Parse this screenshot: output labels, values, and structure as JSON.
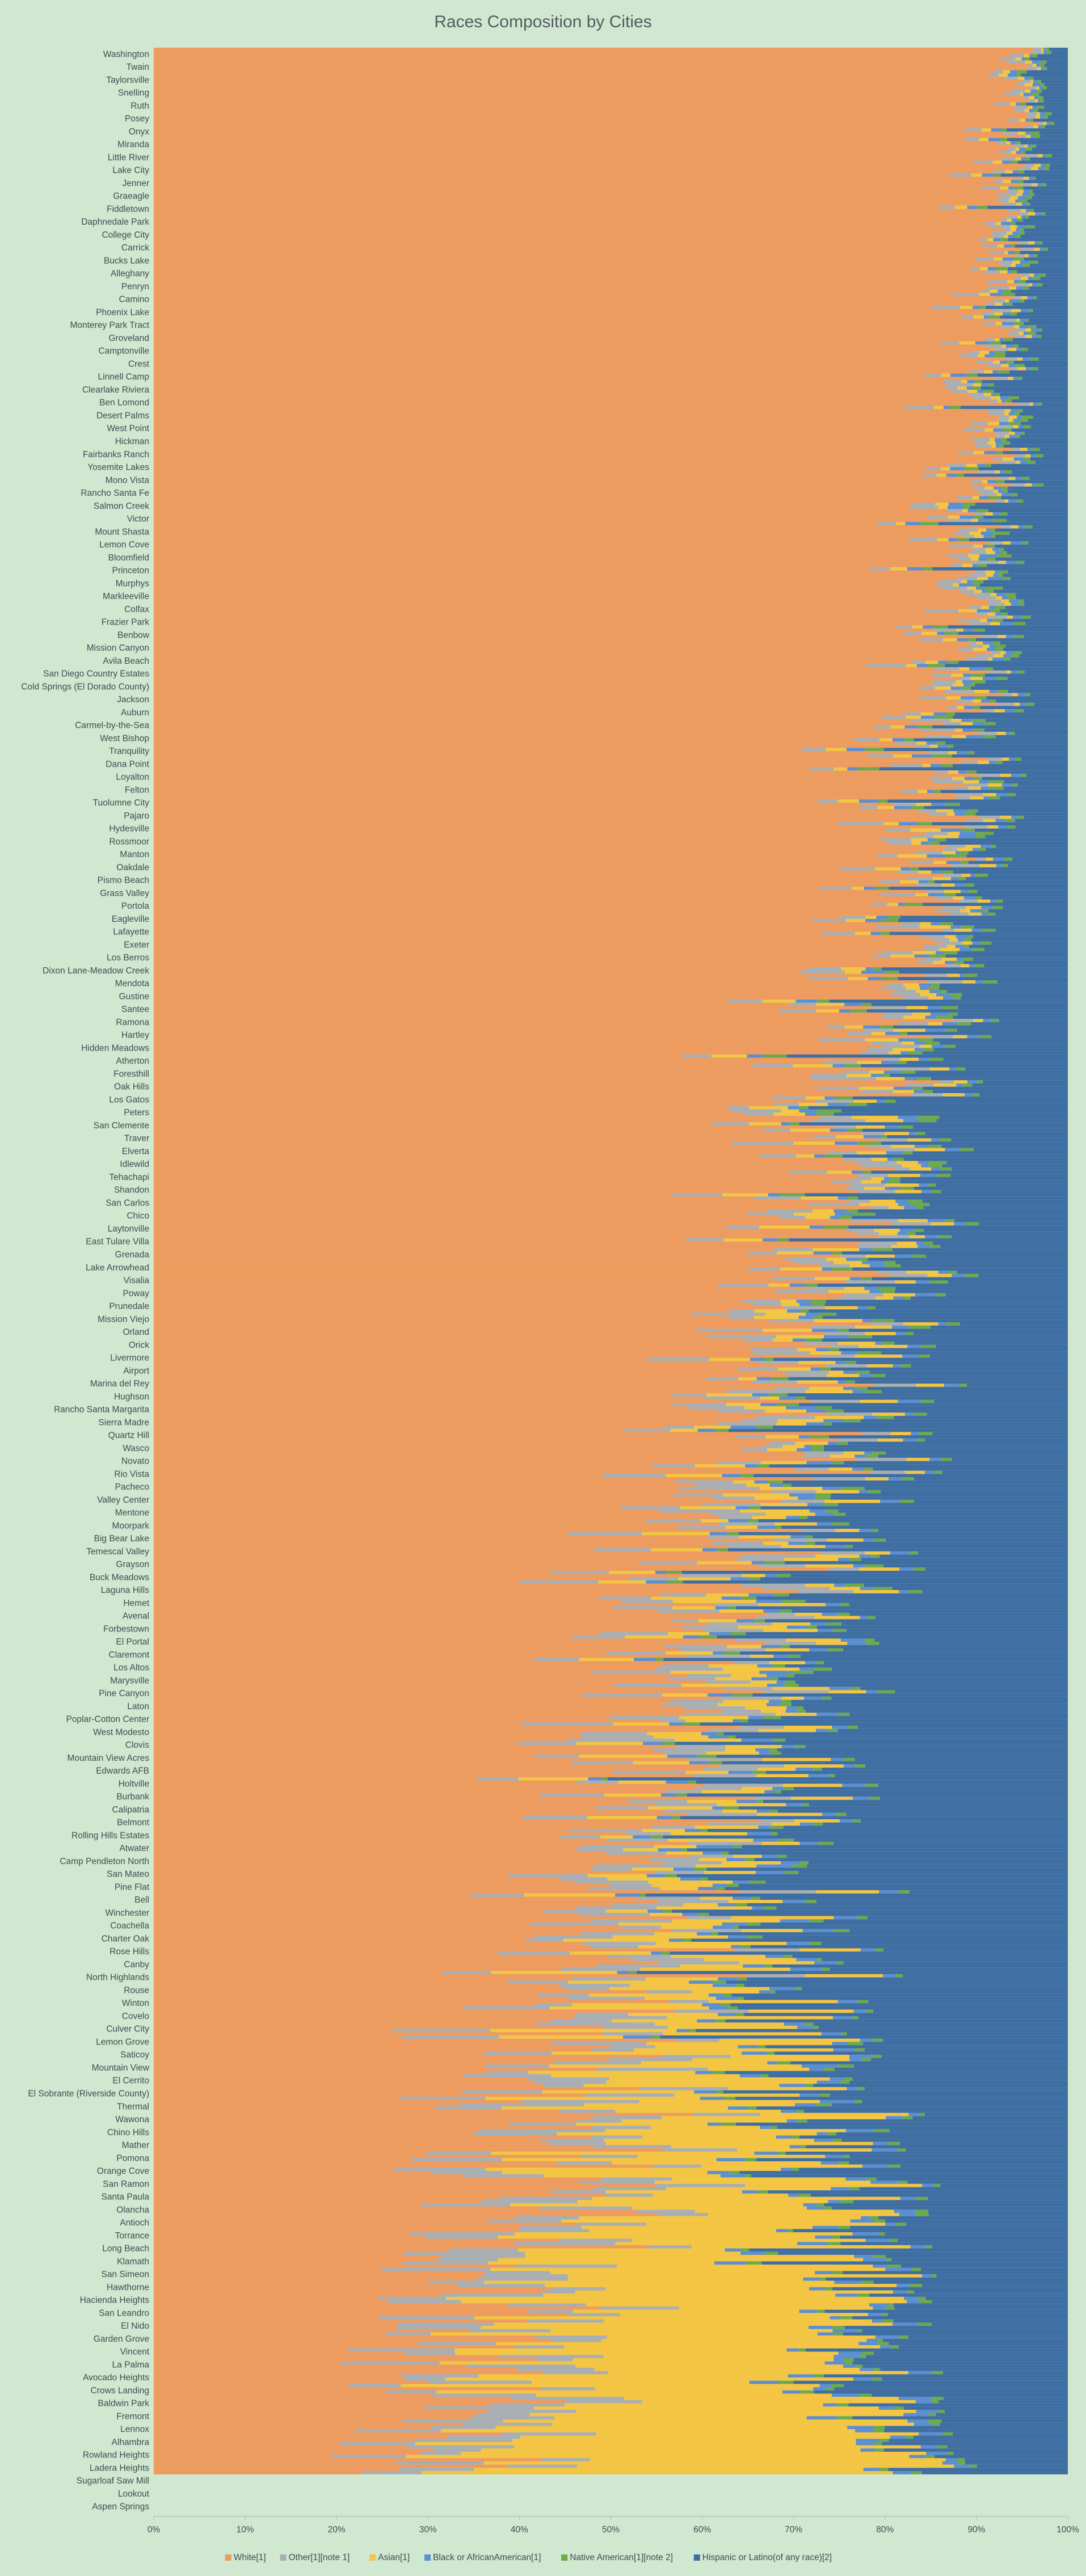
{
  "chart_data": {
    "type": "bar",
    "orientation": "horizontal",
    "stacked": "percent",
    "title": "Races Composition by Cities",
    "xlabel": "",
    "ylabel": "",
    "xlim": [
      0,
      100
    ],
    "x_ticks": [
      "0%",
      "10%",
      "20%",
      "30%",
      "40%",
      "50%",
      "60%",
      "70%",
      "80%",
      "90%",
      "100%"
    ],
    "grid": false,
    "legend_position": "bottom",
    "categories": [
      "Washington",
      "Twain",
      "Taylorsville",
      "Snelling",
      "Ruth",
      "Posey",
      "Onyx",
      "Miranda",
      "Little River",
      "Lake City",
      "Jenner",
      "Graeagle",
      "Fiddletown",
      "Daphnedale Park",
      "College City",
      "Carrick",
      "Bucks Lake",
      "Alleghany",
      "Penryn",
      "Camino",
      "Phoenix Lake",
      "Monterey Park Tract",
      "Groveland",
      "Camptonville",
      "Crest",
      "Linnell Camp",
      "Clearlake Riviera",
      "Ben Lomond",
      "Desert Palms",
      "West Point",
      "Hickman",
      "Fairbanks Ranch",
      "Yosemite Lakes",
      "Mono Vista",
      "Rancho Santa Fe",
      "Salmon Creek",
      "Victor",
      "Mount Shasta",
      "Lemon Cove",
      "Bloomfield",
      "Princeton",
      "Murphys",
      "Markleeville",
      "Colfax",
      "Frazier Park",
      "Benbow",
      "Mission Canyon",
      "Avila Beach",
      "San Diego Country Estates",
      "Cold Springs (El Dorado County)",
      "Jackson",
      "Auburn",
      "Carmel-by-the-Sea",
      "West Bishop",
      "Tranquility",
      "Dana Point",
      "Loyalton",
      "Felton",
      "Tuolumne City",
      "Pajaro",
      "Hydesville",
      "Rossmoor",
      "Manton",
      "Oakdale",
      "Pismo Beach",
      "Grass Valley",
      "Portola",
      "Eagleville",
      "Lafayette",
      "Exeter",
      "Los Berros",
      "Dixon Lane-Meadow Creek",
      "Mendota",
      "Gustine",
      "Santee",
      "Ramona",
      "Hartley",
      "Hidden Meadows",
      "Atherton",
      "Foresthill",
      "Oak Hills",
      "Los Gatos",
      "Peters",
      "San Clemente",
      "Traver",
      "Elverta",
      "Idlewild",
      "Tehachapi",
      "Shandon",
      "San Carlos",
      "Chico",
      "Laytonville",
      "East Tulare Villa",
      "Grenada",
      "Lake Arrowhead",
      "Visalia",
      "Poway",
      "Prunedale",
      "Mission Viejo",
      "Orland",
      "Orick",
      "Livermore",
      "Airport",
      "Marina del Rey",
      "Hughson",
      "Rancho Santa Margarita",
      "Sierra Madre",
      "Quartz Hill",
      "Wasco",
      "Novato",
      "Rio Vista",
      "Pacheco",
      "Valley Center",
      "Mentone",
      "Moorpark",
      "Big Bear Lake",
      "Temescal Valley",
      "Grayson",
      "Buck Meadows",
      "Laguna Hills",
      "Hemet",
      "Avenal",
      "Forbestown",
      "El Portal",
      "Claremont",
      "Los Altos",
      "Marysville",
      "Pine Canyon",
      "Laton",
      "Poplar-Cotton Center",
      "West Modesto",
      "Clovis",
      "Mountain View Acres",
      "Edwards AFB",
      "Holtville",
      "Burbank",
      "Calipatria",
      "Belmont",
      "Rolling Hills Estates",
      "Atwater",
      "Camp Pendleton North",
      "San Mateo",
      "Pine Flat",
      "Bell",
      "Winchester",
      "Coachella",
      "Charter Oak",
      "Rose Hills",
      "Canby",
      "North Highlands",
      "Rouse",
      "Winton",
      "Covelo",
      "Culver City",
      "Lemon Grove",
      "Saticoy",
      "Mountain View",
      "El Cerrito",
      "El Sobrante (Riverside County)",
      "Thermal",
      "Wawona",
      "Chino Hills",
      "Mather",
      "Pomona",
      "Orange Cove",
      "San Ramon",
      "Santa Paula",
      "Olancha",
      "Antioch",
      "Torrance",
      "Long Beach",
      "Klamath",
      "San Simeon",
      "Hawthorne",
      "Hacienda Heights",
      "San Leandro",
      "El Nido",
      "Garden Grove",
      "Vincent",
      "La Palma",
      "Avocado Heights",
      "Crows Landing",
      "Baldwin Park",
      "Fremont",
      "Lennox",
      "Alhambra",
      "Rowland Heights",
      "Ladera Heights",
      "Sugarloaf Saw Mill",
      "Lookout",
      "Aspen Springs"
    ],
    "series": [
      {
        "name": "White[1]",
        "color": "#ed9b5e"
      },
      {
        "name": "Other[1][note 1]",
        "color": "#a9aeb3"
      },
      {
        "name": "Asian[1]",
        "color": "#f4c542"
      },
      {
        "name": "Black or AfricanAmerican[1]",
        "color": "#5b8fd0"
      },
      {
        "name": "Native American[1][note 2]",
        "color": "#6ea84f"
      },
      {
        "name": "Hispanic or Latino(of any race)[2]",
        "color": "#3f6ea3"
      }
    ],
    "approx_row_shares_percent": {
      "top_rows": {
        "White[1]": 95,
        "Other[1][note 1]": 1,
        "Asian[1]": 0.5,
        "Black or AfricanAmerican[1]": 0.5,
        "Native American[1][note 2]": 0.5,
        "Hispanic or Latino(of any race)[2]": 2.5
      },
      "row_25_percent": {
        "White[1]": 87,
        "Other[1][note 1]": 2,
        "Asian[1]": 1,
        "Black or AfricanAmerican[1]": 1,
        "Native American[1][note 2]": 1,
        "Hispanic or Latino(of any race)[2]": 8
      },
      "row_50_percent": {
        "White[1]": 70,
        "Other[1][note 1]": 4,
        "Asian[1]": 3,
        "Black or AfricanAmerican[1]": 1.5,
        "Native American[1][note 2]": 1.5,
        "Hispanic or Latino(of any race)[2]": 20
      },
      "row_75_percent": {
        "White[1]": 50,
        "Other[1][note 1]": 7,
        "Asian[1]": 6,
        "Black or AfricanAmerican[1]": 2,
        "Native American[1][note 2]": 1,
        "Hispanic or Latino(of any race)[2]": 34
      },
      "bottom_rows": {
        "White[1]": 30,
        "Other[1][note 1]": 8,
        "Asian[1]": 45,
        "Black or AfricanAmerican[1]": 2,
        "Native American[1][note 2]": 1,
        "Hispanic or Latino(of any race)[2]": 14
      }
    }
  }
}
